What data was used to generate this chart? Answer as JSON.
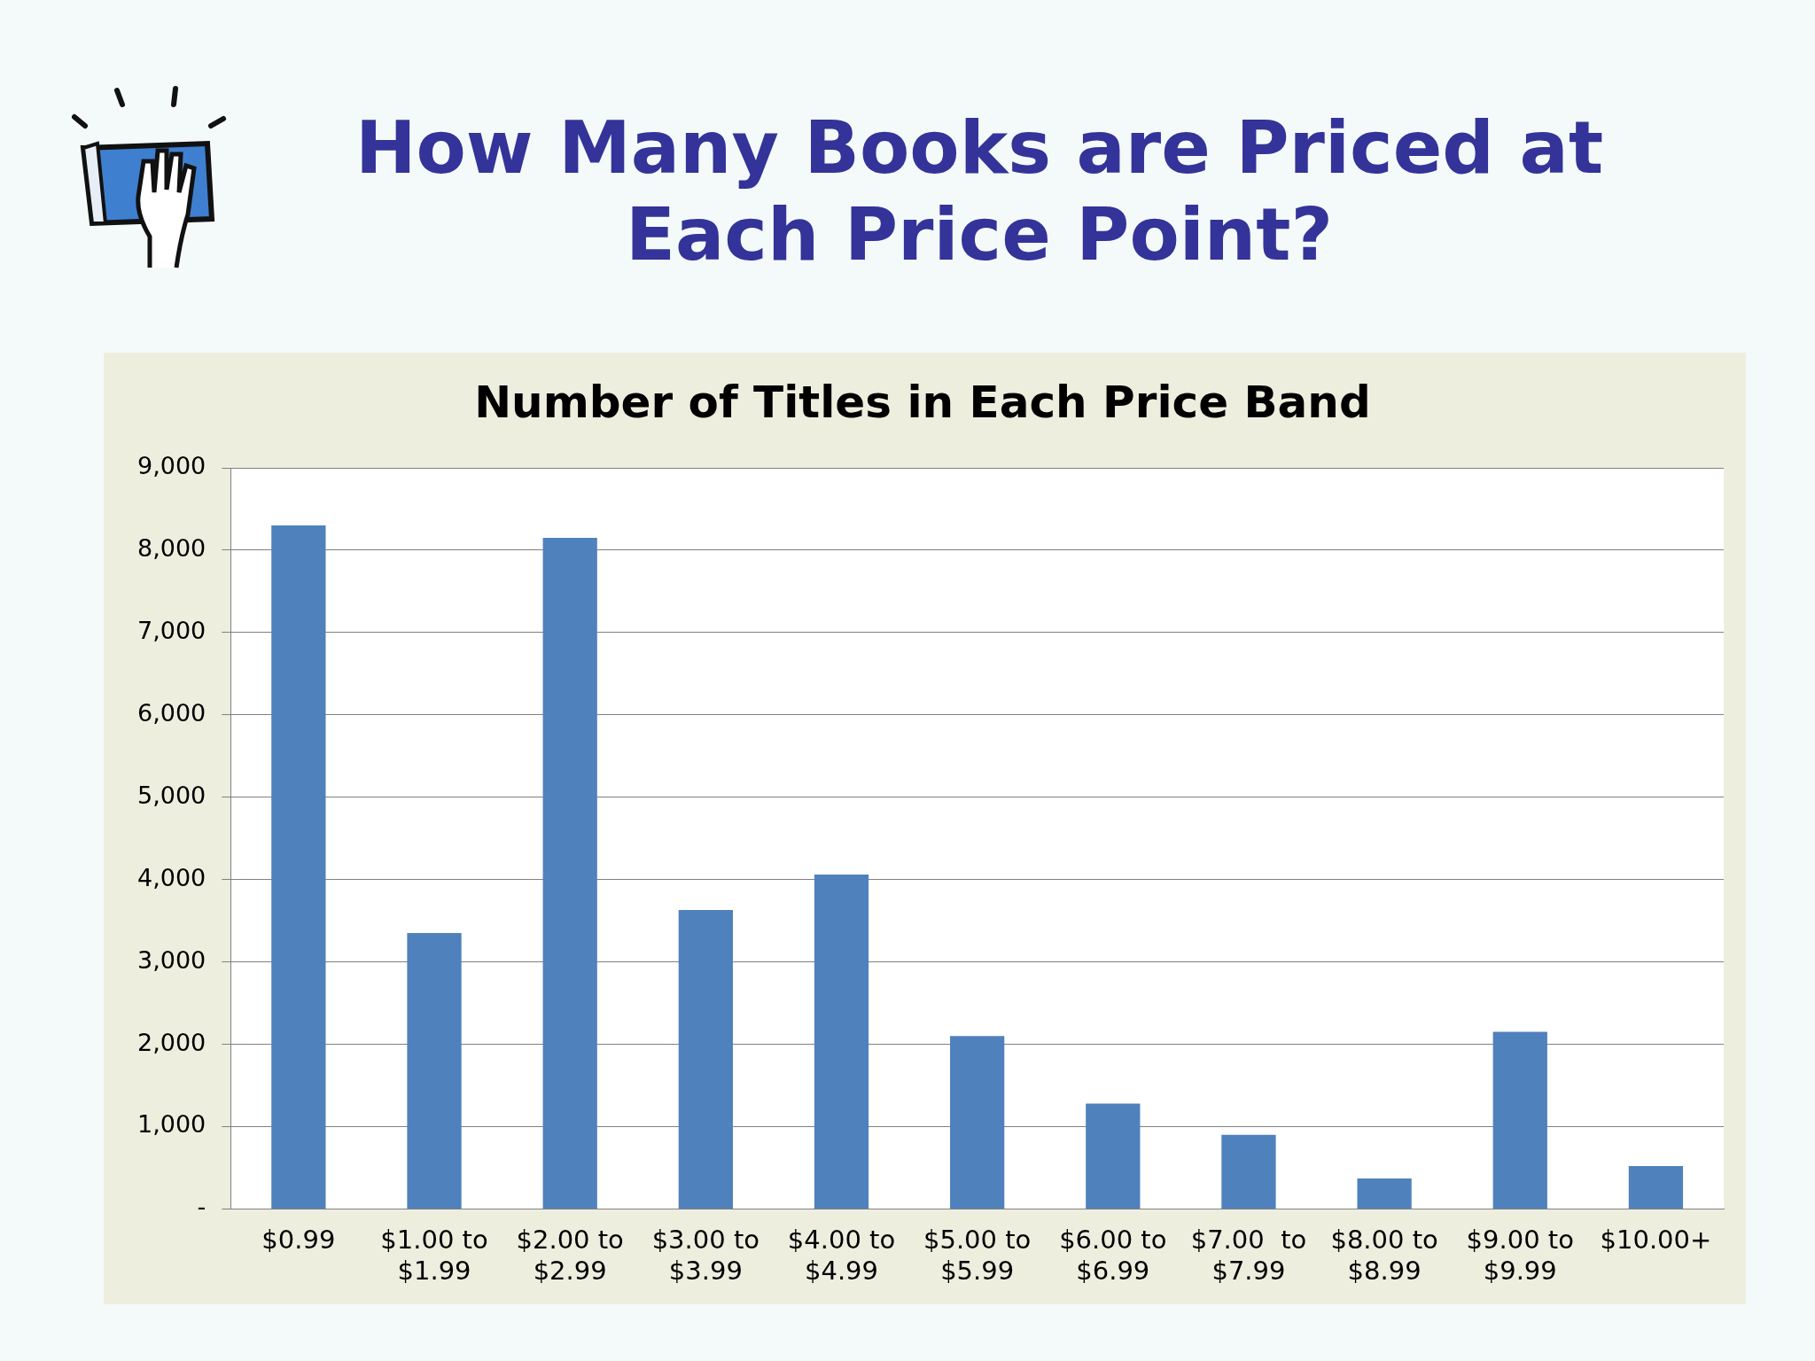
{
  "chart_data": {
    "type": "bar",
    "title": "How Many Books are Priced at Each Price Point?",
    "subtitle": "Number of Titles in Each Price Band",
    "categories": [
      "$0.99",
      "$1.00 to\n$1.99",
      "$2.00 to\n$2.99",
      "$3.00 to\n$3.99",
      "$4.00 to\n$4.99",
      "$5.00 to\n$5.99",
      "$6.00 to\n$6.99",
      "$7.00  to\n$7.99",
      "$8.00 to\n$8.99",
      "$9.00 to\n$9.99",
      "$10.00+"
    ],
    "values": [
      8300,
      3350,
      8150,
      3630,
      4060,
      2100,
      1280,
      900,
      370,
      2150,
      520
    ],
    "color": "#4f81bd",
    "ylim": [
      0,
      9000
    ],
    "yticks": [
      {
        "value": 0,
        "label": "-"
      },
      {
        "value": 1000,
        "label": "1,000"
      },
      {
        "value": 2000,
        "label": "2,000"
      },
      {
        "value": 3000,
        "label": "3,000"
      },
      {
        "value": 4000,
        "label": "4,000"
      },
      {
        "value": 5000,
        "label": "5,000"
      },
      {
        "value": 6000,
        "label": "6,000"
      },
      {
        "value": 7000,
        "label": "7,000"
      },
      {
        "value": 8000,
        "label": "8,000"
      },
      {
        "value": 9000,
        "label": "9,000"
      }
    ],
    "grid": "y",
    "legend": false
  }
}
